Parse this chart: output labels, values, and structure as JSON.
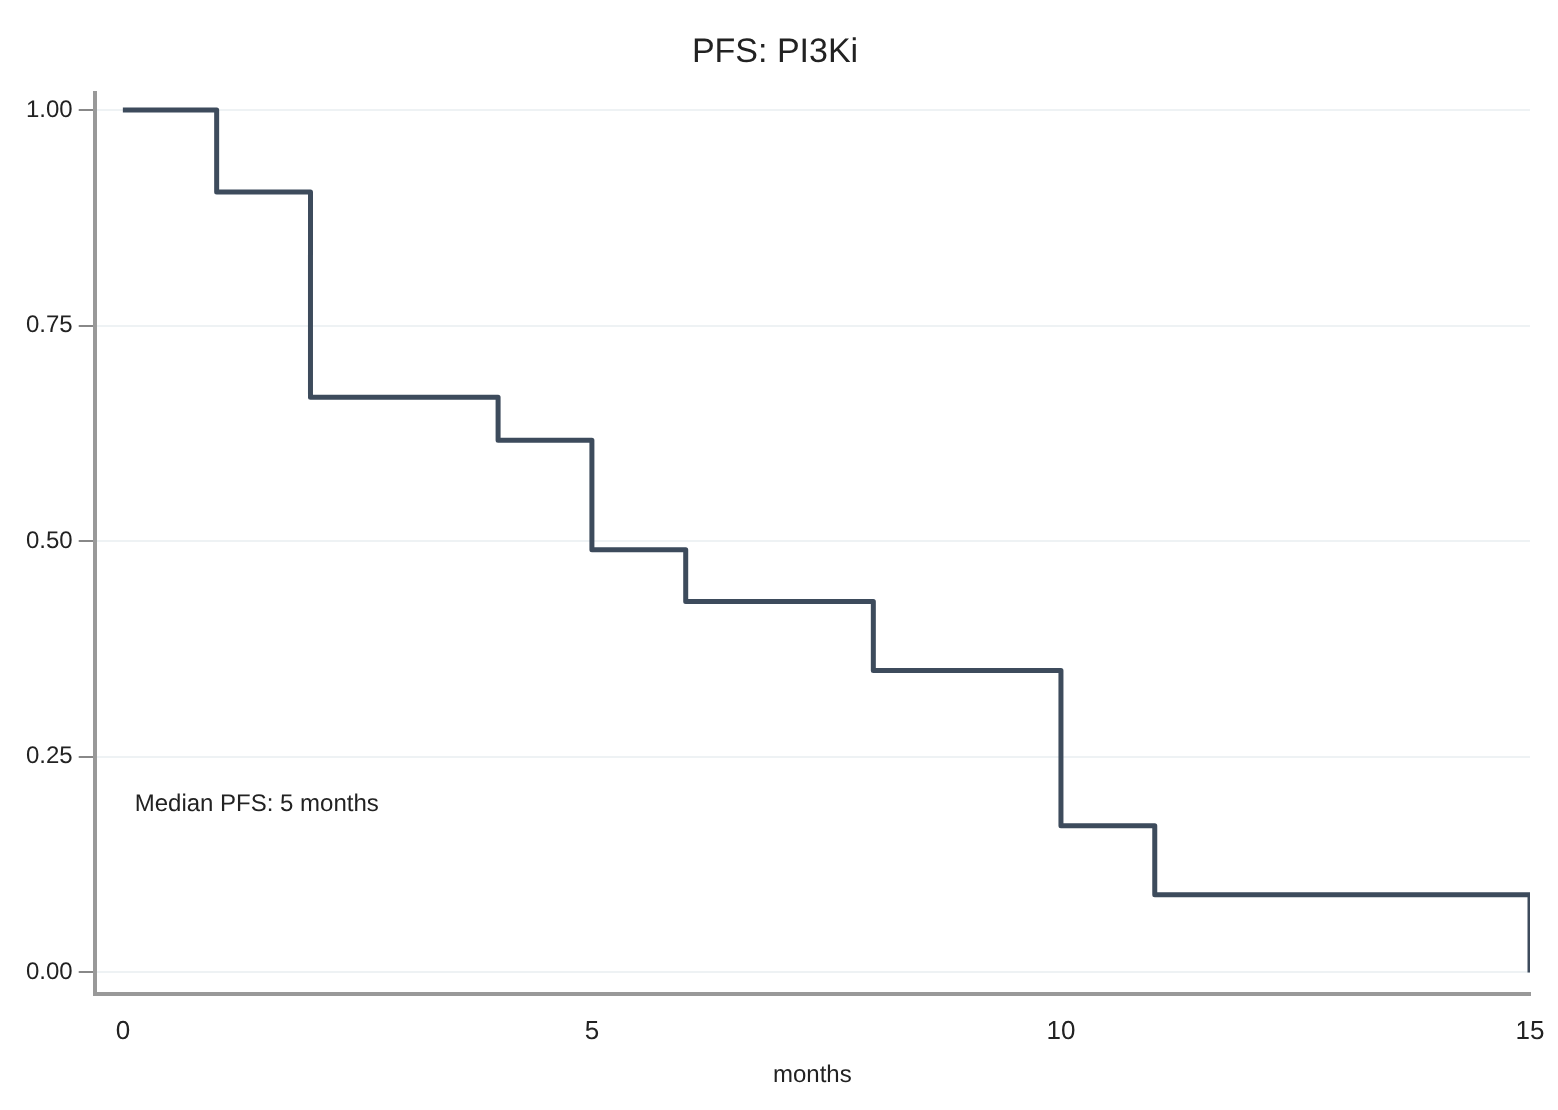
{
  "chart_data": {
    "type": "step",
    "title": "PFS: PI3Ki",
    "xlabel": "months",
    "x": [
      0,
      1,
      2,
      4,
      5,
      6,
      8,
      10,
      11,
      15
    ],
    "series": [
      {
        "color": "#3d4b5c",
        "values": [
          1,
          0.905,
          0.667,
          0.617,
          0.49,
          0.43,
          0.35,
          0.17,
          0.09,
          0
        ]
      }
    ],
    "xlim": [
      -0.3,
      15
    ],
    "xticks": [
      0,
      5,
      10,
      15
    ],
    "ylim": [
      -0.025,
      1.02
    ],
    "yticks": [
      {
        "value": 0,
        "label": "0.00"
      },
      {
        "value": 0.25,
        "label": "0.25"
      },
      {
        "value": 0.5,
        "label": "0.50"
      },
      {
        "value": 0.75,
        "label": "0.75"
      },
      {
        "value": 1,
        "label": "1.00"
      }
    ],
    "grid": "y",
    "legend": false,
    "marker": "none",
    "annotations": [
      "Median PFS: 5 months"
    ]
  }
}
